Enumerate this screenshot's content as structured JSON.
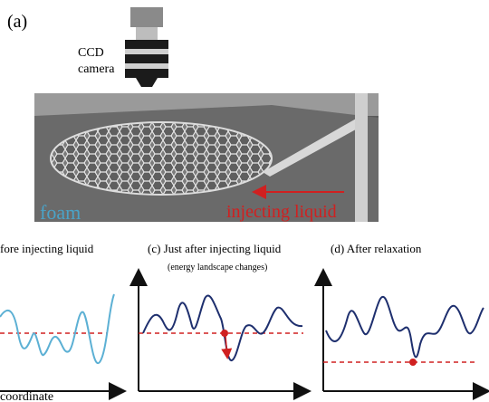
{
  "panel_a": {
    "label": "(a)",
    "camera_label_line1": "CCD",
    "camera_label_line2": "camera",
    "foam_label": "foam",
    "injection_label": "injecting liquid"
  },
  "panel_b": {
    "title": "fore injecting liquid",
    "x_axis_label": "coordinate"
  },
  "panel_c": {
    "title": "(c)  Just after injecting liquid",
    "subtitle": "(energy landscape changes)"
  },
  "panel_d": {
    "title": "(d)  After relaxation"
  }
}
